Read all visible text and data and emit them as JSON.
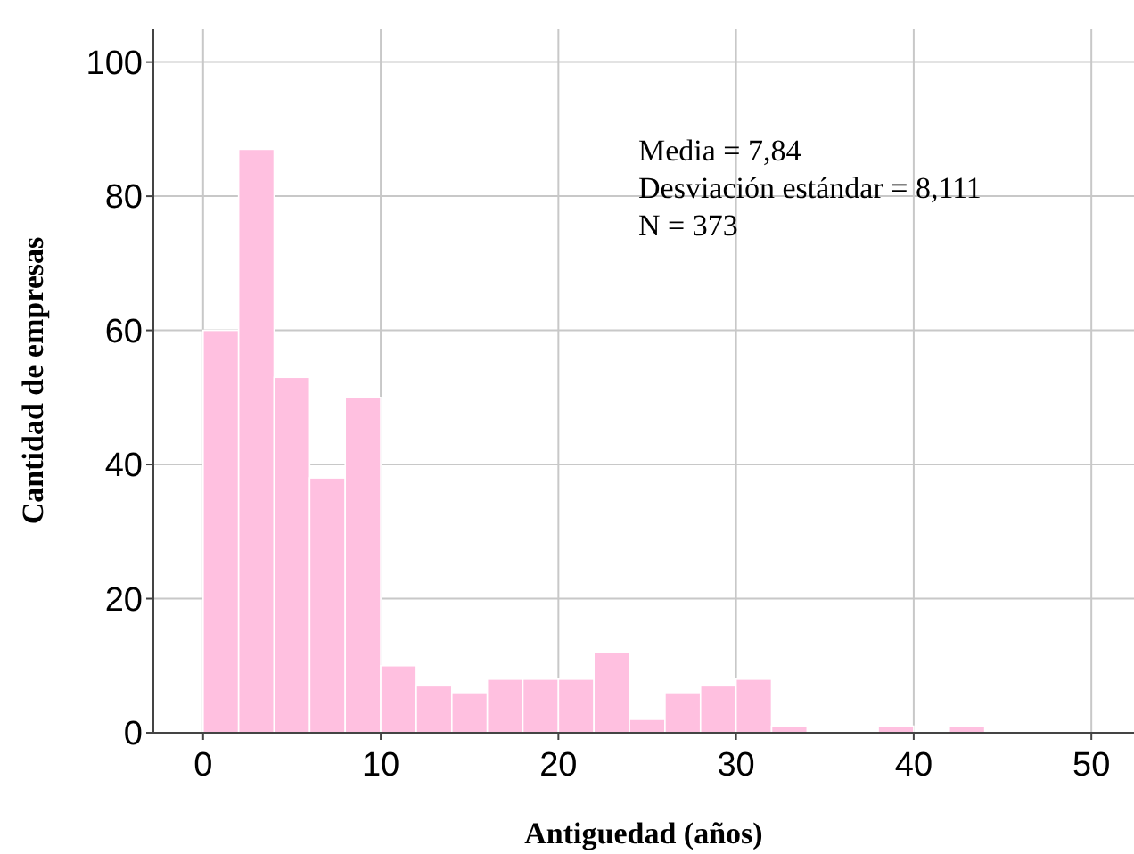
{
  "chart_data": {
    "type": "histogram",
    "xlabel": "Antiguedad (años)",
    "ylabel": "Cantidad de empresas",
    "bins": [
      0,
      2,
      4,
      6,
      8,
      10,
      12,
      14,
      16,
      18,
      20,
      22,
      24,
      26,
      28,
      30,
      32,
      34,
      36,
      38,
      40,
      42,
      44
    ],
    "values": [
      60,
      87,
      53,
      38,
      50,
      10,
      7,
      6,
      8,
      8,
      8,
      12,
      2,
      6,
      7,
      8,
      1,
      0,
      0,
      1,
      0,
      1
    ],
    "color": "#ffc0e0",
    "xlim": [
      -2.8,
      52.4
    ],
    "ylim": [
      0,
      105
    ],
    "xticks": [
      0,
      10,
      20,
      30,
      40,
      50
    ],
    "yticks": [
      0,
      20,
      40,
      60,
      80,
      100
    ],
    "grid": true,
    "annotations": [
      "Media = 7,84",
      "Desviación estándar = 8,111",
      "N = 373"
    ]
  }
}
